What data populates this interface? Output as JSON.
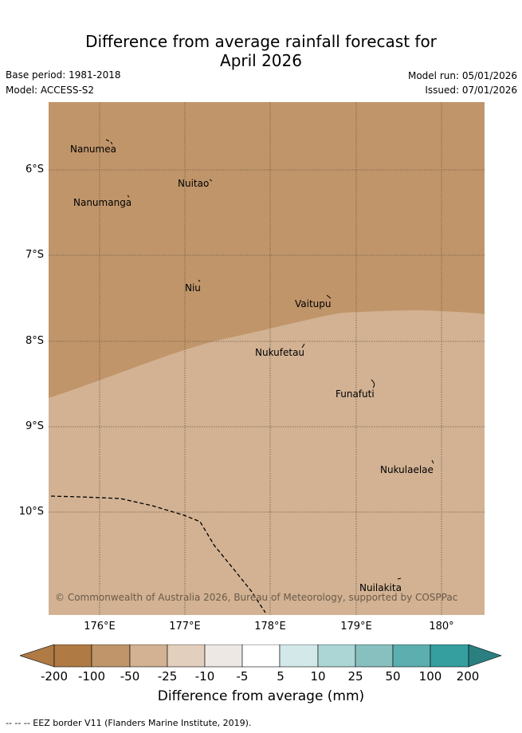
{
  "title": {
    "line1": "Difference from average rainfall forecast for",
    "line2": "April 2026"
  },
  "meta": {
    "base_period": "Base period: 1981-2018",
    "model": "Model: ACCESS-S2",
    "model_run": "Model run: 05/01/2026",
    "issued": "Issued: 07/01/2026"
  },
  "map": {
    "lat_labels": [
      "6°S",
      "7°S",
      "8°S",
      "9°S",
      "10°S"
    ],
    "lon_labels": [
      "176°E",
      "177°E",
      "178°E",
      "179°E",
      "180°"
    ],
    "islands": [
      "Nanumea",
      "Nuitao",
      "Nanumanga",
      "Niu",
      "Vaitupu",
      "Nukufetau",
      "Funafuti",
      "Nukulaelae",
      "Nuilakita"
    ],
    "regions": [
      {
        "name": "-100 to -50 mm zone",
        "color": "#c0956a"
      },
      {
        "name": "-50 to -25 mm zone",
        "color": "#d2b293"
      }
    ],
    "copyright": "© Commonwealth of Australia 2026, Bureau of Meteorology, supported by COSPPac"
  },
  "colorbar": {
    "colors": [
      "#af7a44",
      "#af7a44",
      "#c0956a",
      "#d2b293",
      "#e3cfbd",
      "#ede8e4",
      "#ffffff",
      "#d3e8e8",
      "#acd6d6",
      "#88c0c0",
      "#5daeae",
      "#359f9f",
      "#2a7f80"
    ],
    "ticks": [
      "-200",
      "-100",
      "-50",
      "-25",
      "-10",
      "-5",
      "5",
      "10",
      "25",
      "50",
      "100",
      "200"
    ],
    "title": "Difference from average (mm)"
  },
  "legend": "-- -- -- EEZ border V11 (Flanders Marine Institute, 2019)."
}
